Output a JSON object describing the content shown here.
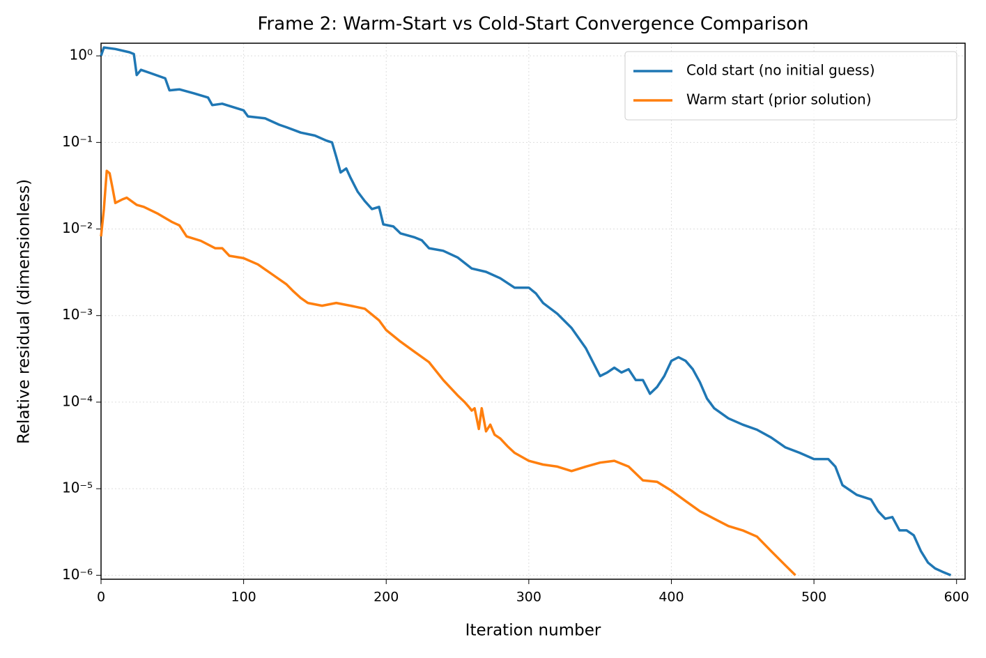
{
  "chart_data": {
    "type": "line",
    "title": "Frame 2: Warm-Start vs Cold-Start Convergence Comparison",
    "x_label": "Iteration number",
    "y_label": "Relative residual (dimensionless)",
    "yscale": "log",
    "grid": true,
    "legend": "upper right",
    "xlim": [
      0,
      606
    ],
    "ylim": [
      9e-07,
      1.4
    ],
    "xticks": [
      0,
      100,
      200,
      300,
      400,
      500,
      600
    ],
    "yticks": [
      {
        "value": 1,
        "label": "10⁰"
      },
      {
        "value": 0.1,
        "label": "10⁻¹"
      },
      {
        "value": 0.01,
        "label": "10⁻²"
      },
      {
        "value": 0.001,
        "label": "10⁻³"
      },
      {
        "value": 0.0001,
        "label": "10⁻⁴"
      },
      {
        "value": 1e-05,
        "label": "10⁻⁵"
      },
      {
        "value": 1e-06,
        "label": "10⁻⁶"
      }
    ],
    "series": [
      {
        "name": "Cold start (no initial guess)",
        "color": "#1f77b4",
        "x": [
          0,
          2,
          10,
          20,
          23,
          25,
          28,
          35,
          45,
          48,
          55,
          65,
          75,
          78,
          85,
          100,
          103,
          115,
          125,
          130,
          140,
          150,
          158,
          162,
          165,
          168,
          172,
          175,
          180,
          185,
          190,
          195,
          198,
          205,
          210,
          220,
          225,
          230,
          240,
          250,
          260,
          270,
          280,
          290,
          300,
          305,
          310,
          320,
          330,
          340,
          345,
          350,
          355,
          360,
          365,
          370,
          375,
          380,
          385,
          390,
          395,
          400,
          405,
          410,
          415,
          420,
          425,
          430,
          440,
          450,
          460,
          470,
          480,
          490,
          500,
          510,
          515,
          520,
          530,
          540,
          545,
          550,
          555,
          560,
          565,
          570,
          575,
          580,
          585,
          590,
          596
        ],
        "values": [
          1.0,
          1.25,
          1.2,
          1.1,
          1.05,
          0.6,
          0.69,
          0.63,
          0.55,
          0.4,
          0.41,
          0.37,
          0.33,
          0.27,
          0.28,
          0.235,
          0.2,
          0.19,
          0.16,
          0.15,
          0.13,
          0.12,
          0.105,
          0.1,
          0.068,
          0.045,
          0.05,
          0.039,
          0.027,
          0.021,
          0.017,
          0.018,
          0.0113,
          0.0107,
          0.0089,
          0.008,
          0.0074,
          0.006,
          0.0056,
          0.0047,
          0.0035,
          0.0032,
          0.0027,
          0.0021,
          0.0021,
          0.0018,
          0.0014,
          0.00105,
          0.00072,
          0.00042,
          0.00029,
          0.0002,
          0.00022,
          0.00025,
          0.00022,
          0.00024,
          0.00018,
          0.00018,
          0.000125,
          0.00015,
          0.0002,
          0.0003,
          0.00033,
          0.0003,
          0.00024,
          0.00017,
          0.00011,
          8.5e-05,
          6.5e-05,
          5.5e-05,
          4.8e-05,
          3.9e-05,
          3e-05,
          2.6e-05,
          2.2e-05,
          2.2e-05,
          1.8e-05,
          1.1e-05,
          8.5e-06,
          7.5e-06,
          5.5e-06,
          4.5e-06,
          4.7e-06,
          3.3e-06,
          3.3e-06,
          2.9e-06,
          1.9e-06,
          1.4e-06,
          1.2e-06,
          1.1e-06,
          1e-06
        ]
      },
      {
        "name": "Warm start (prior solution)",
        "color": "#ff7f0e",
        "x": [
          0,
          2,
          4,
          6,
          8,
          10,
          15,
          18,
          25,
          30,
          40,
          50,
          55,
          60,
          70,
          80,
          85,
          90,
          100,
          110,
          120,
          130,
          135,
          140,
          145,
          155,
          165,
          175,
          185,
          195,
          200,
          210,
          220,
          230,
          240,
          250,
          255,
          258,
          260,
          262,
          265,
          267,
          270,
          273,
          276,
          280,
          285,
          290,
          300,
          310,
          320,
          330,
          340,
          350,
          360,
          370,
          380,
          390,
          400,
          410,
          420,
          430,
          440,
          450,
          460,
          470,
          480,
          487
        ],
        "values": [
          0.0082,
          0.017,
          0.047,
          0.044,
          0.03,
          0.02,
          0.022,
          0.023,
          0.019,
          0.018,
          0.015,
          0.012,
          0.011,
          0.0082,
          0.0073,
          0.006,
          0.006,
          0.0049,
          0.0046,
          0.0039,
          0.003,
          0.0023,
          0.0019,
          0.0016,
          0.0014,
          0.0013,
          0.0014,
          0.0013,
          0.0012,
          0.00088,
          0.00068,
          0.0005,
          0.00038,
          0.00029,
          0.00018,
          0.00012,
          0.0001,
          8.8e-05,
          8e-05,
          8.5e-05,
          4.9e-05,
          8.5e-05,
          4.6e-05,
          5.5e-05,
          4.2e-05,
          3.8e-05,
          3.1e-05,
          2.6e-05,
          2.1e-05,
          1.9e-05,
          1.8e-05,
          1.6e-05,
          1.8e-05,
          2e-05,
          2.1e-05,
          1.8e-05,
          1.25e-05,
          1.2e-05,
          9.5e-06,
          7.2e-06,
          5.5e-06,
          4.5e-06,
          3.7e-06,
          3.3e-06,
          2.8e-06,
          1.9e-06,
          1.3e-06,
          1e-06
        ]
      }
    ]
  }
}
